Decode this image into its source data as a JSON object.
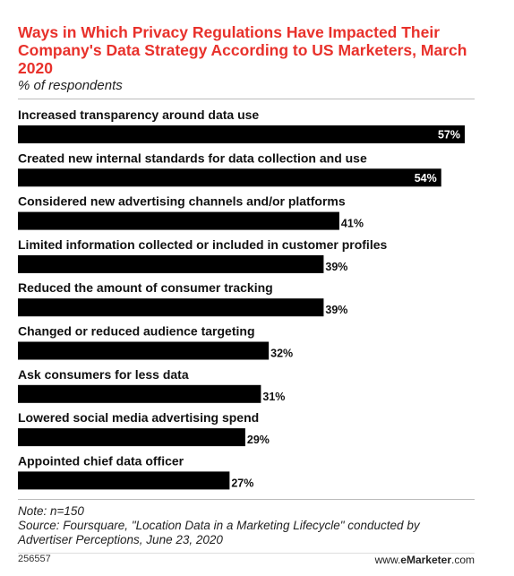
{
  "title": "Ways in Which Privacy Regulations Have Impacted Their Company's Data Strategy According to US Marketers, March 2020",
  "subtitle": "% of respondents",
  "note": "Note: n=150",
  "source": "Source: Foursquare, \"Location Data in a Marketing Lifecycle\" conducted by Advertiser Perceptions, June 23, 2020",
  "chart_id": "256557",
  "brand": {
    "prefix": "www.",
    "name": "eMarketer",
    "suffix": ".com"
  },
  "colors": {
    "title": "#e8312b",
    "bar": "#000000",
    "label_inside": "#ffffff",
    "label_outside": "#111111"
  },
  "chart_data": {
    "type": "bar",
    "orientation": "horizontal",
    "unit": "%",
    "xlim": [
      0,
      57
    ],
    "grid": false,
    "categories": [
      "Increased transparency around data use",
      "Created new internal standards for data collection and use",
      "Considered new advertising channels and/or platforms",
      "Limited information collected or included in customer profiles",
      "Reduced the amount of consumer tracking",
      "Changed or reduced audience targeting",
      "Ask consumers for less data",
      "Lowered social media advertising spend",
      "Appointed chief data officer"
    ],
    "values": [
      57,
      54,
      41,
      39,
      39,
      32,
      31,
      29,
      27
    ],
    "value_labels": [
      "57%",
      "54%",
      "41%",
      "39%",
      "39%",
      "32%",
      "31%",
      "29%",
      "27%"
    ]
  }
}
